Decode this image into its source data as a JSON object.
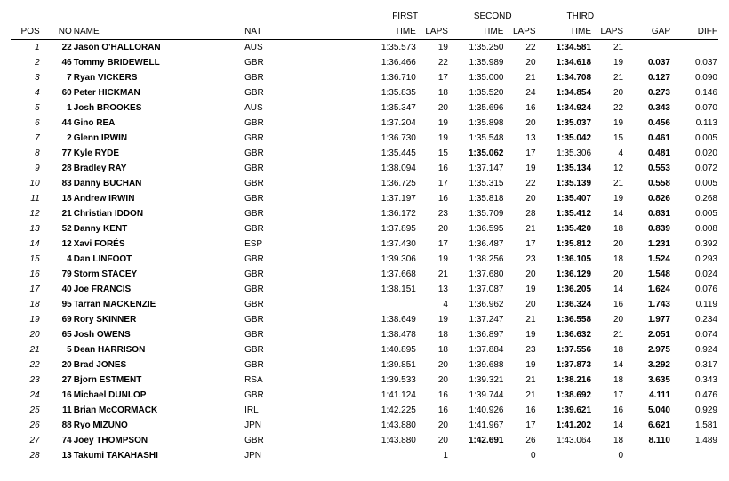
{
  "headers": {
    "pos": "POS",
    "no": "NO",
    "name": "NAME",
    "nat": "NAT",
    "first": "FIRST",
    "second": "SECOND",
    "third": "THIRD",
    "time": "TIME",
    "laps": "LAPS",
    "gap": "GAP",
    "diff": "DIFF"
  },
  "rows": [
    {
      "pos": "1",
      "no": "22",
      "name": "Jason O'HALLORAN",
      "nat": "AUS",
      "t1": "1:35.573",
      "l1": "19",
      "t2": "1:35.250",
      "l2": "22",
      "t3": "1:34.581",
      "l3": "21",
      "gap": "",
      "diff": "",
      "best": 3
    },
    {
      "pos": "2",
      "no": "46",
      "name": "Tommy BRIDEWELL",
      "nat": "GBR",
      "t1": "1:36.466",
      "l1": "22",
      "t2": "1:35.989",
      "l2": "20",
      "t3": "1:34.618",
      "l3": "19",
      "gap": "0.037",
      "diff": "0.037",
      "best": 3
    },
    {
      "pos": "3",
      "no": "7",
      "name": "Ryan VICKERS",
      "nat": "GBR",
      "t1": "1:36.710",
      "l1": "17",
      "t2": "1:35.000",
      "l2": "21",
      "t3": "1:34.708",
      "l3": "21",
      "gap": "0.127",
      "diff": "0.090",
      "best": 3
    },
    {
      "pos": "4",
      "no": "60",
      "name": "Peter HICKMAN",
      "nat": "GBR",
      "t1": "1:35.835",
      "l1": "18",
      "t2": "1:35.520",
      "l2": "24",
      "t3": "1:34.854",
      "l3": "20",
      "gap": "0.273",
      "diff": "0.146",
      "best": 3
    },
    {
      "pos": "5",
      "no": "1",
      "name": "Josh BROOKES",
      "nat": "AUS",
      "t1": "1:35.347",
      "l1": "20",
      "t2": "1:35.696",
      "l2": "16",
      "t3": "1:34.924",
      "l3": "22",
      "gap": "0.343",
      "diff": "0.070",
      "best": 3
    },
    {
      "pos": "6",
      "no": "44",
      "name": "Gino REA",
      "nat": "GBR",
      "t1": "1:37.204",
      "l1": "19",
      "t2": "1:35.898",
      "l2": "20",
      "t3": "1:35.037",
      "l3": "19",
      "gap": "0.456",
      "diff": "0.113",
      "best": 3
    },
    {
      "pos": "7",
      "no": "2",
      "name": "Glenn IRWIN",
      "nat": "GBR",
      "t1": "1:36.730",
      "l1": "19",
      "t2": "1:35.548",
      "l2": "13",
      "t3": "1:35.042",
      "l3": "15",
      "gap": "0.461",
      "diff": "0.005",
      "best": 3
    },
    {
      "pos": "8",
      "no": "77",
      "name": "Kyle RYDE",
      "nat": "GBR",
      "t1": "1:35.445",
      "l1": "15",
      "t2": "1:35.062",
      "l2": "17",
      "t3": "1:35.306",
      "l3": "4",
      "gap": "0.481",
      "diff": "0.020",
      "best": 2
    },
    {
      "pos": "9",
      "no": "28",
      "name": "Bradley RAY",
      "nat": "GBR",
      "t1": "1:38.094",
      "l1": "16",
      "t2": "1:37.147",
      "l2": "19",
      "t3": "1:35.134",
      "l3": "12",
      "gap": "0.553",
      "diff": "0.072",
      "best": 3
    },
    {
      "pos": "10",
      "no": "83",
      "name": "Danny BUCHAN",
      "nat": "GBR",
      "t1": "1:36.725",
      "l1": "17",
      "t2": "1:35.315",
      "l2": "22",
      "t3": "1:35.139",
      "l3": "21",
      "gap": "0.558",
      "diff": "0.005",
      "best": 3
    },
    {
      "pos": "11",
      "no": "18",
      "name": "Andrew IRWIN",
      "nat": "GBR",
      "t1": "1:37.197",
      "l1": "16",
      "t2": "1:35.818",
      "l2": "20",
      "t3": "1:35.407",
      "l3": "19",
      "gap": "0.826",
      "diff": "0.268",
      "best": 3
    },
    {
      "pos": "12",
      "no": "21",
      "name": "Christian IDDON",
      "nat": "GBR",
      "t1": "1:36.172",
      "l1": "23",
      "t2": "1:35.709",
      "l2": "28",
      "t3": "1:35.412",
      "l3": "14",
      "gap": "0.831",
      "diff": "0.005",
      "best": 3
    },
    {
      "pos": "13",
      "no": "52",
      "name": "Danny KENT",
      "nat": "GBR",
      "t1": "1:37.895",
      "l1": "20",
      "t2": "1:36.595",
      "l2": "21",
      "t3": "1:35.420",
      "l3": "18",
      "gap": "0.839",
      "diff": "0.008",
      "best": 3
    },
    {
      "pos": "14",
      "no": "12",
      "name": "Xavi FORÉS",
      "nat": "ESP",
      "t1": "1:37.430",
      "l1": "17",
      "t2": "1:36.487",
      "l2": "17",
      "t3": "1:35.812",
      "l3": "20",
      "gap": "1.231",
      "diff": "0.392",
      "best": 3
    },
    {
      "pos": "15",
      "no": "4",
      "name": "Dan LINFOOT",
      "nat": "GBR",
      "t1": "1:39.306",
      "l1": "19",
      "t2": "1:38.256",
      "l2": "23",
      "t3": "1:36.105",
      "l3": "18",
      "gap": "1.524",
      "diff": "0.293",
      "best": 3
    },
    {
      "pos": "16",
      "no": "79",
      "name": "Storm STACEY",
      "nat": "GBR",
      "t1": "1:37.668",
      "l1": "21",
      "t2": "1:37.680",
      "l2": "20",
      "t3": "1:36.129",
      "l3": "20",
      "gap": "1.548",
      "diff": "0.024",
      "best": 3
    },
    {
      "pos": "17",
      "no": "40",
      "name": "Joe FRANCIS",
      "nat": "GBR",
      "t1": "1:38.151",
      "l1": "13",
      "t2": "1:37.087",
      "l2": "19",
      "t3": "1:36.205",
      "l3": "14",
      "gap": "1.624",
      "diff": "0.076",
      "best": 3
    },
    {
      "pos": "18",
      "no": "95",
      "name": "Tarran MACKENZIE",
      "nat": "GBR",
      "t1": "",
      "l1": "4",
      "t2": "1:36.962",
      "l2": "20",
      "t3": "1:36.324",
      "l3": "16",
      "gap": "1.743",
      "diff": "0.119",
      "best": 3
    },
    {
      "pos": "19",
      "no": "69",
      "name": "Rory SKINNER",
      "nat": "GBR",
      "t1": "1:38.649",
      "l1": "19",
      "t2": "1:37.247",
      "l2": "21",
      "t3": "1:36.558",
      "l3": "20",
      "gap": "1.977",
      "diff": "0.234",
      "best": 3
    },
    {
      "pos": "20",
      "no": "65",
      "name": "Josh OWENS",
      "nat": "GBR",
      "t1": "1:38.478",
      "l1": "18",
      "t2": "1:36.897",
      "l2": "19",
      "t3": "1:36.632",
      "l3": "21",
      "gap": "2.051",
      "diff": "0.074",
      "best": 3
    },
    {
      "pos": "21",
      "no": "5",
      "name": "Dean HARRISON",
      "nat": "GBR",
      "t1": "1:40.895",
      "l1": "18",
      "t2": "1:37.884",
      "l2": "23",
      "t3": "1:37.556",
      "l3": "18",
      "gap": "2.975",
      "diff": "0.924",
      "best": 3
    },
    {
      "pos": "22",
      "no": "20",
      "name": "Brad JONES",
      "nat": "GBR",
      "t1": "1:39.851",
      "l1": "20",
      "t2": "1:39.688",
      "l2": "19",
      "t3": "1:37.873",
      "l3": "14",
      "gap": "3.292",
      "diff": "0.317",
      "best": 3
    },
    {
      "pos": "23",
      "no": "27",
      "name": "Bjorn ESTMENT",
      "nat": "RSA",
      "t1": "1:39.533",
      "l1": "20",
      "t2": "1:39.321",
      "l2": "21",
      "t3": "1:38.216",
      "l3": "18",
      "gap": "3.635",
      "diff": "0.343",
      "best": 3
    },
    {
      "pos": "24",
      "no": "16",
      "name": "Michael DUNLOP",
      "nat": "GBR",
      "t1": "1:41.124",
      "l1": "16",
      "t2": "1:39.744",
      "l2": "21",
      "t3": "1:38.692",
      "l3": "17",
      "gap": "4.111",
      "diff": "0.476",
      "best": 3
    },
    {
      "pos": "25",
      "no": "11",
      "name": "Brian McCORMACK",
      "nat": "IRL",
      "t1": "1:42.225",
      "l1": "16",
      "t2": "1:40.926",
      "l2": "16",
      "t3": "1:39.621",
      "l3": "16",
      "gap": "5.040",
      "diff": "0.929",
      "best": 3
    },
    {
      "pos": "26",
      "no": "88",
      "name": "Ryo MIZUNO",
      "nat": "JPN",
      "t1": "1:43.880",
      "l1": "20",
      "t2": "1:41.967",
      "l2": "17",
      "t3": "1:41.202",
      "l3": "14",
      "gap": "6.621",
      "diff": "1.581",
      "best": 3
    },
    {
      "pos": "27",
      "no": "74",
      "name": "Joey THOMPSON",
      "nat": "GBR",
      "t1": "1:43.880",
      "l1": "20",
      "t2": "1:42.691",
      "l2": "26",
      "t3": "1:43.064",
      "l3": "18",
      "gap": "8.110",
      "diff": "1.489",
      "best": 2
    },
    {
      "pos": "28",
      "no": "13",
      "name": "Takumi TAKAHASHI",
      "nat": "JPN",
      "t1": "",
      "l1": "1",
      "t2": "",
      "l2": "0",
      "t3": "",
      "l3": "0",
      "gap": "",
      "diff": "",
      "best": 0
    }
  ]
}
